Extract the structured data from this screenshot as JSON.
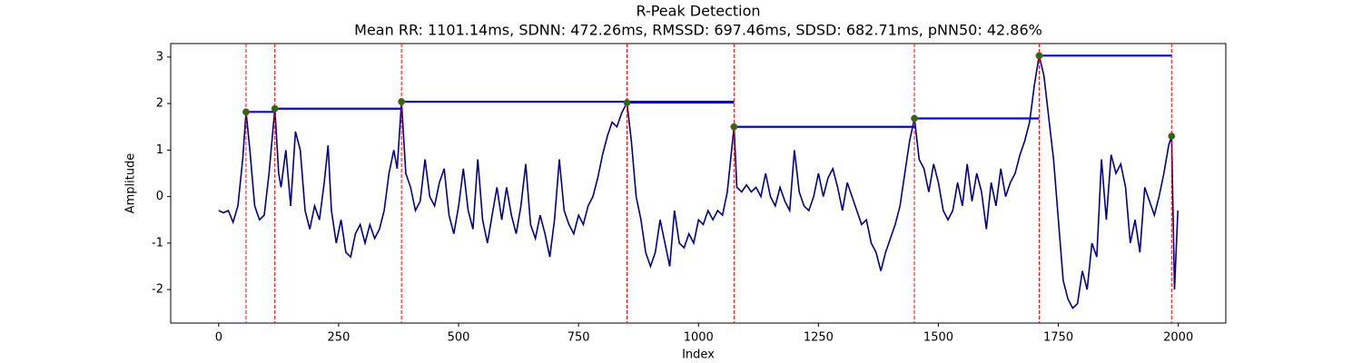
{
  "chart_data": {
    "type": "line",
    "title": "R-Peak Detection",
    "subtitle": "Mean RR: 1101.14ms, SDNN: 472.26ms, RMSSD: 697.46ms, SDSD: 682.71ms, pNN50: 42.86%",
    "x_label": "Index",
    "y_label": "Amplitude",
    "color": "#00008b",
    "x": [
      0,
      10,
      20,
      30,
      40,
      50,
      57,
      65,
      75,
      85,
      95,
      105,
      117,
      125,
      130,
      140,
      150,
      160,
      170,
      180,
      190,
      200,
      210,
      220,
      228,
      235,
      245,
      255,
      265,
      275,
      285,
      295,
      305,
      315,
      325,
      335,
      345,
      355,
      365,
      372,
      381,
      390,
      400,
      410,
      420,
      430,
      440,
      450,
      460,
      470,
      480,
      490,
      500,
      510,
      520,
      530,
      540,
      550,
      560,
      570,
      580,
      590,
      600,
      610,
      620,
      630,
      640,
      650,
      660,
      670,
      680,
      690,
      700,
      710,
      720,
      730,
      740,
      750,
      760,
      770,
      780,
      790,
      800,
      810,
      820,
      830,
      840,
      851,
      860,
      870,
      880,
      890,
      900,
      910,
      920,
      930,
      940,
      950,
      960,
      970,
      980,
      990,
      1000,
      1010,
      1020,
      1030,
      1040,
      1050,
      1060,
      1074,
      1080,
      1090,
      1100,
      1110,
      1120,
      1130,
      1140,
      1150,
      1160,
      1170,
      1180,
      1190,
      1200,
      1210,
      1220,
      1230,
      1240,
      1250,
      1260,
      1270,
      1280,
      1290,
      1300,
      1310,
      1320,
      1330,
      1340,
      1350,
      1360,
      1370,
      1380,
      1390,
      1400,
      1410,
      1420,
      1430,
      1440,
      1450,
      1460,
      1470,
      1480,
      1490,
      1500,
      1510,
      1520,
      1530,
      1540,
      1550,
      1560,
      1570,
      1580,
      1590,
      1600,
      1610,
      1620,
      1630,
      1640,
      1650,
      1660,
      1670,
      1680,
      1690,
      1700,
      1710,
      1720,
      1730,
      1740,
      1750,
      1760,
      1770,
      1780,
      1790,
      1800,
      1810,
      1820,
      1830,
      1840,
      1850,
      1860,
      1870,
      1880,
      1890,
      1900,
      1910,
      1920,
      1930,
      1940,
      1950,
      1960,
      1970,
      1980,
      1986,
      1992,
      1999
    ],
    "values": [
      -0.3,
      -0.35,
      -0.3,
      -0.55,
      -0.2,
      0.8,
      1.82,
      1.0,
      -0.2,
      -0.5,
      -0.4,
      0.5,
      1.89,
      0.5,
      0.2,
      1.0,
      -0.2,
      1.4,
      1.0,
      -0.3,
      -0.7,
      -0.2,
      -0.5,
      0.3,
      1.1,
      -0.3,
      -1.0,
      -0.5,
      -1.2,
      -1.3,
      -0.8,
      -0.6,
      -1.0,
      -0.6,
      -0.9,
      -0.7,
      -0.3,
      0.5,
      1.0,
      0.6,
      2.04,
      0.5,
      0.2,
      -0.3,
      -0.1,
      0.8,
      0.0,
      -0.2,
      0.3,
      0.6,
      -0.4,
      -0.8,
      -0.2,
      0.6,
      -0.3,
      -0.7,
      0.8,
      -0.5,
      -1.0,
      -0.4,
      0.2,
      -0.5,
      0.2,
      -0.4,
      -0.8,
      -0.2,
      0.7,
      -0.6,
      -0.9,
      -0.4,
      -0.8,
      -1.3,
      -0.5,
      0.8,
      -0.3,
      -0.6,
      -0.8,
      -0.4,
      -0.6,
      -0.2,
      0.0,
      0.4,
      0.9,
      1.3,
      1.6,
      1.5,
      1.8,
      2.02,
      1.2,
      0.0,
      -0.5,
      -1.2,
      -1.5,
      -1.2,
      -0.5,
      -1.0,
      -1.5,
      -0.3,
      -1.0,
      -1.1,
      -0.8,
      -1.0,
      -0.5,
      -0.6,
      -0.3,
      -0.5,
      -0.3,
      -0.4,
      0.1,
      1.5,
      0.2,
      0.1,
      0.25,
      0.1,
      0.2,
      0.0,
      0.5,
      0.0,
      -0.2,
      0.2,
      -0.1,
      -0.3,
      1.0,
      0.1,
      -0.2,
      -0.3,
      0.0,
      0.5,
      0.0,
      0.4,
      0.6,
      0.2,
      -0.3,
      0.3,
      0.0,
      -0.3,
      -0.6,
      -0.5,
      -1.0,
      -1.2,
      -1.6,
      -1.2,
      -0.9,
      -0.6,
      -0.2,
      0.5,
      1.2,
      1.68,
      0.8,
      0.6,
      0.1,
      0.7,
      0.3,
      -0.3,
      -0.5,
      -0.3,
      0.3,
      -0.2,
      0.7,
      -0.1,
      0.5,
      0.1,
      -0.7,
      0.3,
      -0.2,
      0.6,
      0.0,
      0.3,
      0.5,
      0.9,
      1.2,
      1.6,
      2.4,
      3.03,
      2.6,
      1.7,
      0.8,
      -0.5,
      -1.8,
      -2.2,
      -2.4,
      -2.3,
      -1.6,
      -2.0,
      -1.0,
      -1.3,
      0.8,
      -0.5,
      0.9,
      0.5,
      0.7,
      0.2,
      -1.0,
      -0.5,
      -1.2,
      0.2,
      -0.1,
      -0.4,
      0.0,
      0.5,
      1.1,
      1.3,
      -2.0,
      -0.3
    ],
    "peaks": {
      "x": [
        57,
        117,
        381,
        851,
        1074,
        1450,
        1710,
        1986
      ],
      "values": [
        1.82,
        1.89,
        2.04,
        2.02,
        1.5,
        1.68,
        3.03,
        1.3
      ],
      "color": "green",
      "edge_color": "#d62728",
      "line_color": "red"
    },
    "hlines": {
      "values": [
        1.82,
        1.89,
        2.04,
        2.02,
        1.5,
        1.68,
        3.03
      ],
      "xmin": [
        57,
        117,
        381,
        851,
        1074,
        1450,
        1710
      ],
      "xmax": [
        117,
        381,
        1074,
        1074,
        1450,
        1710,
        1986
      ],
      "color": "blue"
    },
    "xlim": [
      -100,
      2099
    ],
    "ylim": [
      -2.72,
      3.29
    ],
    "xticks": [
      0,
      250,
      500,
      750,
      1000,
      1250,
      1500,
      1750,
      2000
    ],
    "yticks": [
      -2,
      -1,
      0,
      1,
      2,
      3
    ]
  }
}
